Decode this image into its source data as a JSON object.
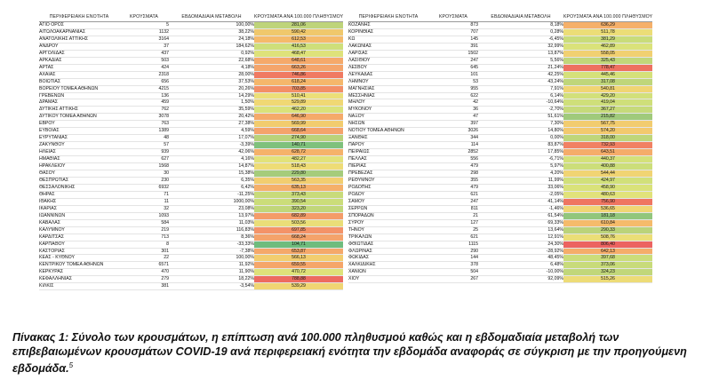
{
  "headers": {
    "region": "ΠΕΡΙΦΕΡΕΙΑΚΗ ΕΝΟΤΗΤΑ",
    "cases": "ΚΡΟΥΣΜΑΤΑ",
    "change": "ΕΒΔΟΜΑΔΙΑΙΑ ΜΕΤΑΒΟΛΗ",
    "incidence": "ΚΡΟΥΣΜΑΤΑ ΑΝΑ 100.000 ΠΛΗΘΥΣΜΟΥ"
  },
  "left_rows": [
    {
      "name": "ΑΓΙΟ ΟΡΟΣ",
      "cases": "5",
      "change": "100,00%",
      "incidence": "281,06",
      "color": "#bed47a"
    },
    {
      "name": "ΑΙΤΩΛΟΑΚΑΡΝΑΝΙΑΣ",
      "cases": "1132",
      "change": "38,22%",
      "incidence": "590,42",
      "color": "#f0c86c"
    },
    {
      "name": "ΑΝΑΤΟΛΙΚΗΣ ΑΤΤΙΚΗΣ",
      "cases": "3164",
      "change": "24,18%",
      "incidence": "612,53",
      "color": "#f5ba6a"
    },
    {
      "name": "ΑΝΔΡΟΥ",
      "cases": "37",
      "change": "184,62%",
      "incidence": "416,53",
      "color": "#cedf7a"
    },
    {
      "name": "ΑΡΓΟΛΙΔΑΣ",
      "cases": "437",
      "change": "0,92%",
      "incidence": "468,47",
      "color": "#dee27a"
    },
    {
      "name": "ΑΡΚΑΔΙΑΣ",
      "cases": "503",
      "change": "22,68%",
      "incidence": "648,61",
      "color": "#f5a96a"
    },
    {
      "name": "ΑΡΤΑΣ",
      "cases": "424",
      "change": "4,18%",
      "incidence": "663,26",
      "color": "#f4a56b"
    },
    {
      "name": "ΑΧΑΪΑΣ",
      "cases": "2318",
      "change": "28,00%",
      "incidence": "746,86",
      "color": "#f07a62"
    },
    {
      "name": "ΒΟΙΩΤΙΑΣ",
      "cases": "656",
      "change": "37,53%",
      "incidence": "618,24",
      "color": "#f5b76b"
    },
    {
      "name": "ΒΟΡΕΙΟΥ ΤΟΜΕΑ ΑΘΗΝΩΝ",
      "cases": "4215",
      "change": "20,26%",
      "incidence": "703,85",
      "color": "#f38f66"
    },
    {
      "name": "ΓΡΕΒΕΝΩΝ",
      "cases": "136",
      "change": "14,29%",
      "incidence": "510,41",
      "color": "#ecdf78"
    },
    {
      "name": "ΔΡΑΜΑΣ",
      "cases": "459",
      "change": "1,50%",
      "incidence": "529,89",
      "color": "#f0d874"
    },
    {
      "name": "ΔΥΤΙΚΗΣ ΑΤΤΙΚΗΣ",
      "cases": "762",
      "change": "35,59%",
      "incidence": "462,20",
      "color": "#dae27a"
    },
    {
      "name": "ΔΥΤΙΚΟΥ ΤΟΜΕΑ ΑΘΗΝΩΝ",
      "cases": "3078",
      "change": "20,42%",
      "incidence": "646,90",
      "color": "#f5aa6a"
    },
    {
      "name": "ΕΒΡΟΥ",
      "cases": "763",
      "change": "27,38%",
      "incidence": "569,99",
      "color": "#f2cc6e"
    },
    {
      "name": "ΕΥΒΟΙΑΣ",
      "cases": "1389",
      "change": "4,59%",
      "incidence": "668,64",
      "color": "#f4a36b"
    },
    {
      "name": "ΕΥΡΥΤΑΝΙΑΣ",
      "cases": "48",
      "change": "17,07%",
      "incidence": "274,90",
      "color": "#b9d27a"
    },
    {
      "name": "ΖΑΚΥΝΘΟΥ",
      "cases": "57",
      "change": "-3,39%",
      "incidence": "140,71",
      "color": "#7fc17c"
    },
    {
      "name": "ΗΛΕΙΑΣ",
      "cases": "939",
      "change": "42,06%",
      "incidence": "628,72",
      "color": "#f5b26a"
    },
    {
      "name": "ΗΜΑΘΙΑΣ",
      "cases": "627",
      "change": "4,16%",
      "incidence": "482,27",
      "color": "#e2e27a"
    },
    {
      "name": "ΗΡΑΚΛΕΙΟΥ",
      "cases": "1568",
      "change": "14,87%",
      "incidence": "518,43",
      "color": "#eedc76"
    },
    {
      "name": "ΘΑΣΟΥ",
      "cases": "30",
      "change": "15,38%",
      "incidence": "229,80",
      "color": "#a5cc7b"
    },
    {
      "name": "ΘΕΣΠΡΩΤΙΑΣ",
      "cases": "230",
      "change": "6,35%",
      "incidence": "563,35",
      "color": "#f2ce70"
    },
    {
      "name": "ΘΕΣΣΑΛΟΝΙΚΗΣ",
      "cases": "6932",
      "change": "6,42%",
      "incidence": "635,13",
      "color": "#f5b06a"
    },
    {
      "name": "ΘΗΡΑΣ",
      "cases": "71",
      "change": "-11,25%",
      "incidence": "373,43",
      "color": "#c8db7a"
    },
    {
      "name": "ΙΘΑΚΗΣ",
      "cases": "11",
      "change": "1000,00%",
      "incidence": "390,54",
      "color": "#cbdd7a"
    },
    {
      "name": "ΙΚΑΡΙΑΣ",
      "cases": "32",
      "change": "23,08%",
      "incidence": "323,20",
      "color": "#c1d77a"
    },
    {
      "name": "ΙΩΑΝΝΙΝΩΝ",
      "cases": "1093",
      "change": "13,97%",
      "incidence": "682,89",
      "color": "#f49c69"
    },
    {
      "name": "ΚΑΒΑΛΑΣ",
      "cases": "584",
      "change": "11,03%",
      "incidence": "503,56",
      "color": "#eade78"
    },
    {
      "name": "ΚΑΛΥΜΝΟΥ",
      "cases": "219",
      "change": "116,83%",
      "incidence": "697,85",
      "color": "#f49368"
    },
    {
      "name": "ΚΑΡΔΙΤΣΑΣ",
      "cases": "713",
      "change": "8,36%",
      "incidence": "668,24",
      "color": "#f4a36b"
    },
    {
      "name": "ΚΑΡΠΑΘΟΥ",
      "cases": "8",
      "change": "-33,33%",
      "incidence": "104,71",
      "color": "#6fbc7d"
    },
    {
      "name": "ΚΑΣΤΟΡΙΑΣ",
      "cases": "301",
      "change": "-7,38%",
      "incidence": "653,87",
      "color": "#f5a86a"
    },
    {
      "name": "ΚΕΑΣ - ΚΥΘΝΟΥ",
      "cases": "22",
      "change": "100,00%",
      "incidence": "566,13",
      "color": "#f2cd6f"
    },
    {
      "name": "ΚΕΝΤΡΙΚΟΥ ΤΟΜΕΑ ΑΘΗΝΩΝ",
      "cases": "6571",
      "change": "11,92%",
      "incidence": "659,55",
      "color": "#f5a66a"
    },
    {
      "name": "ΚΕΡΚΥΡΑΣ",
      "cases": "470",
      "change": "11,90%",
      "incidence": "470,72",
      "color": "#dee27a"
    },
    {
      "name": "ΚΕΦΑΛΛΗΝΙΑΣ",
      "cases": "279",
      "change": "18,22%",
      "incidence": "788,88",
      "color": "#ed6b60"
    },
    {
      "name": "ΚΙΛΚΙΣ",
      "cases": "381",
      "change": "-3,54%",
      "incidence": "539,29",
      "color": "#f0d573"
    }
  ],
  "right_rows": [
    {
      "name": "ΚΟΖΑΝΗΣ",
      "cases": "873",
      "change": "8,18%",
      "incidence": "636,29",
      "color": "#f5b06a"
    },
    {
      "name": "ΚΟΡΙΝΘΙΑΣ",
      "cases": "707",
      "change": "0,28%",
      "incidence": "511,78",
      "color": "#ecdd77"
    },
    {
      "name": "ΚΩ",
      "cases": "145",
      "change": "-6,45%",
      "incidence": "381,29",
      "color": "#c9dc7a"
    },
    {
      "name": "ΛΑΚΩΝΙΑΣ",
      "cases": "391",
      "change": "32,99%",
      "incidence": "462,89",
      "color": "#dae27a"
    },
    {
      "name": "ΛΑΡΙΣΑΣ",
      "cases": "1502",
      "change": "13,87%",
      "incidence": "558,05",
      "color": "#f1d071"
    },
    {
      "name": "ΛΑΣΙΘΙΟΥ",
      "cases": "247",
      "change": "5,56%",
      "incidence": "325,43",
      "color": "#c1d77a"
    },
    {
      "name": "ΛΕΣΒΟΥ",
      "cases": "645",
      "change": "21,24%",
      "incidence": "778,47",
      "color": "#ee7060"
    },
    {
      "name": "ΛΕΥΚΑΔΑΣ",
      "cases": "101",
      "change": "42,25%",
      "incidence": "445,46",
      "color": "#d5e17a"
    },
    {
      "name": "ΛΗΜΝΟΥ",
      "cases": "53",
      "change": "43,24%",
      "incidence": "317,08",
      "color": "#bfd67a"
    },
    {
      "name": "ΜΑΓΝΗΣΙΑΣ",
      "cases": "955",
      "change": "7,91%",
      "incidence": "540,81",
      "color": "#f0d573"
    },
    {
      "name": "ΜΕΣΣΗΝΙΑΣ",
      "cases": "622",
      "change": "6,14%",
      "incidence": "429,20",
      "color": "#d2e07a"
    },
    {
      "name": "ΜΗΛΟΥ",
      "cases": "42",
      "change": "-10,64%",
      "incidence": "419,04",
      "color": "#cfdf7a"
    },
    {
      "name": "ΜΥΚΟΝΟΥ",
      "cases": "36",
      "change": "-2,70%",
      "incidence": "367,27",
      "color": "#c6da7a"
    },
    {
      "name": "ΝΑΞΟΥ",
      "cases": "47",
      "change": "51,61%",
      "incidence": "215,82",
      "color": "#a0ca7b"
    },
    {
      "name": "ΝΗΣΩΝ",
      "cases": "397",
      "change": "7,30%",
      "incidence": "567,75",
      "color": "#f2cc6f"
    },
    {
      "name": "ΝΟΤΙΟΥ ΤΟΜΕΑ ΑΘΗΝΩΝ",
      "cases": "3026",
      "change": "14,80%",
      "incidence": "574,20",
      "color": "#f3c96e"
    },
    {
      "name": "ΞΑΝΘΗΣ",
      "cases": "344",
      "change": "0,00%",
      "incidence": "318,00",
      "color": "#bfd67a"
    },
    {
      "name": "ΠΑΡΟΥ",
      "cases": "114",
      "change": "83,87%",
      "incidence": "732,93",
      "color": "#f18163"
    },
    {
      "name": "ΠΕΙΡΑΙΩΣ",
      "cases": "2852",
      "change": "17,85%",
      "incidence": "643,51",
      "color": "#f5ac6a"
    },
    {
      "name": "ΠΕΛΛΑΣ",
      "cases": "556",
      "change": "-6,71%",
      "incidence": "440,37",
      "color": "#d4e17a"
    },
    {
      "name": "ΠΙΕΡΙΑΣ",
      "cases": "479",
      "change": "5,97%",
      "incidence": "400,88",
      "color": "#ccde7a"
    },
    {
      "name": "ΠΡΕΒΕΖΑΣ",
      "cases": "298",
      "change": "4,20%",
      "incidence": "544,44",
      "color": "#f1d473"
    },
    {
      "name": "ΡΕΘΥΜΝΟΥ",
      "cases": "355",
      "change": "11,99%",
      "incidence": "424,97",
      "color": "#d1e07a"
    },
    {
      "name": "ΡΟΔΟΠΗΣ",
      "cases": "479",
      "change": "33,06%",
      "incidence": "458,90",
      "color": "#d9e27a"
    },
    {
      "name": "ΡΟΔΟΥ",
      "cases": "621",
      "change": "-2,05%",
      "incidence": "480,63",
      "color": "#e1e27a"
    },
    {
      "name": "ΣΑΜΟΥ",
      "cases": "247",
      "change": "41,14%",
      "incidence": "756,90",
      "color": "#ef7561"
    },
    {
      "name": "ΣΕΡΡΩΝ",
      "cases": "811",
      "change": "-1,46%",
      "incidence": "536,65",
      "color": "#f0d674"
    },
    {
      "name": "ΣΠΟΡΑΔΩΝ",
      "cases": "21",
      "change": "61,54%",
      "incidence": "181,18",
      "color": "#92c67c"
    },
    {
      "name": "ΣΥΡΟΥ",
      "cases": "127",
      "change": "69,33%",
      "incidence": "610,84",
      "color": "#f5bb6b"
    },
    {
      "name": "ΤΗΝΟΥ",
      "cases": "25",
      "change": "13,64%",
      "incidence": "290,33",
      "color": "#bbd37a"
    },
    {
      "name": "ΤΡΙΚΑΛΩΝ",
      "cases": "621",
      "change": "12,91%",
      "incidence": "508,76",
      "color": "#ebde77"
    },
    {
      "name": "ΦΘΙΩΤΙΔΑΣ",
      "cases": "1115",
      "change": "24,30%",
      "incidence": "806,40",
      "color": "#ec6360"
    },
    {
      "name": "ΦΛΩΡΙΝΑΣ",
      "cases": "290",
      "change": "-28,92%",
      "incidence": "642,13",
      "color": "#f5ad6a"
    },
    {
      "name": "ΦΩΚΙΔΑΣ",
      "cases": "144",
      "change": "48,45%",
      "incidence": "397,68",
      "color": "#cbdd7a"
    },
    {
      "name": "ΧΑΛΚΙΔΙΚΗΣ",
      "cases": "378",
      "change": "6,48%",
      "incidence": "373,06",
      "color": "#c8db7a"
    },
    {
      "name": "ΧΑΝΙΩΝ",
      "cases": "504",
      "change": "-10,00%",
      "incidence": "324,23",
      "color": "#c1d77a"
    },
    {
      "name": "ΧΙΟΥ",
      "cases": "267",
      "change": "92,09%",
      "incidence": "515,26",
      "color": "#eddc77"
    }
  ],
  "caption": {
    "text": "Πίνακας 1: Σύνολο των κρουσμάτων, η επίπτωση ανά 100.000 πληθυσμού καθώς και η εβδομαδιαία μεταβολή των επιβεβαιωμένων κρουσμάτων COVID-19 ανά περιφερειακή ενότητα την εβδομάδα αναφοράς σε σύγκριση με την προηγούμενη εβδομάδα.",
    "footnote": "5"
  }
}
